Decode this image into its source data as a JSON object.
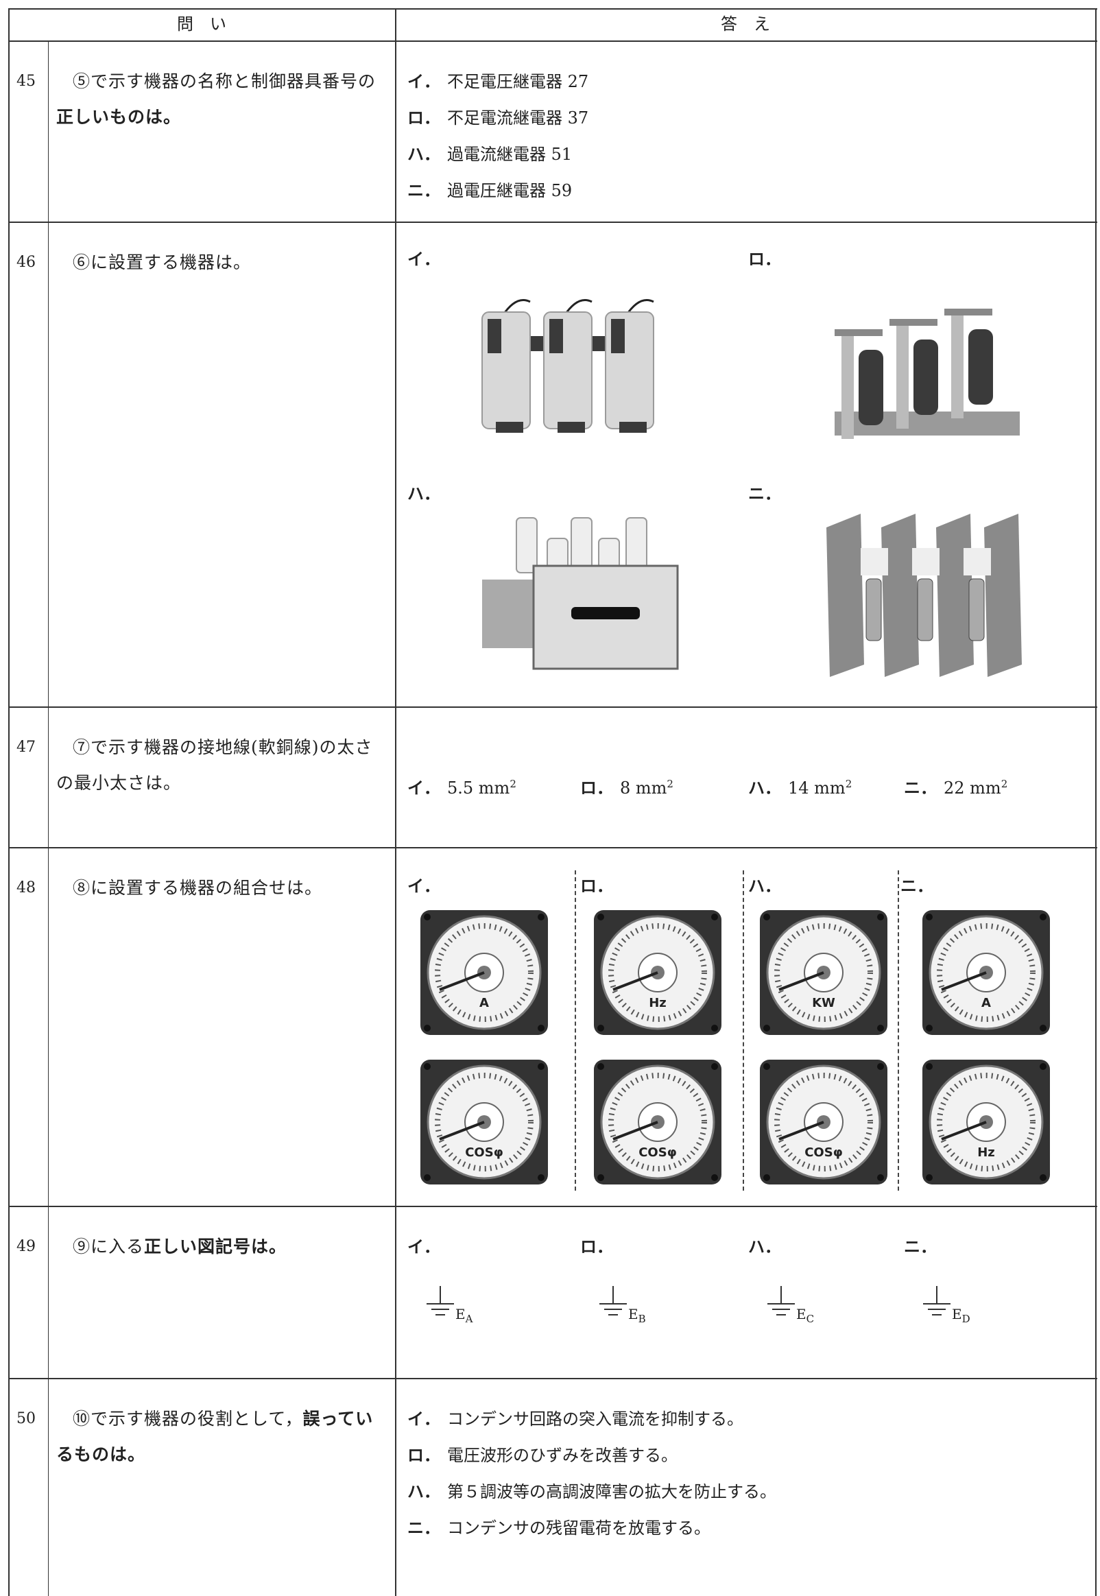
{
  "header": {
    "question": "問　い",
    "answer": "答　え"
  },
  "questions": [
    {
      "number": 45,
      "text": "⑤で示す機器の名称と制御器具番号の",
      "emphasis": "正しいものは。",
      "options": [
        {
          "label": "イ．",
          "text": "不足電圧継電器 27"
        },
        {
          "label": "ロ．",
          "text": "不足電流継電器 37"
        },
        {
          "label": "ハ．",
          "text": "過電流継電器 51"
        },
        {
          "label": "ニ．",
          "text": "過電圧継電器 59"
        }
      ]
    },
    {
      "number": 46,
      "text": "⑥に設置する機器は。",
      "options": [
        {
          "label": "イ．"
        },
        {
          "label": "ロ．"
        },
        {
          "label": "ハ．"
        },
        {
          "label": "ニ．"
        }
      ]
    },
    {
      "number": 47,
      "text": "⑦で示す機器の接地線(軟銅線)の太さの最小太さは。",
      "options": [
        {
          "label": "イ．",
          "text": "5.5 mm",
          "sup": "2"
        },
        {
          "label": "ロ．",
          "text": "8 mm",
          "sup": "2"
        },
        {
          "label": "ハ．",
          "text": "14 mm",
          "sup": "2"
        },
        {
          "label": "ニ．",
          "text": "22 mm",
          "sup": "2"
        }
      ]
    },
    {
      "number": 48,
      "text": "⑧に設置する機器の組合せは。",
      "options": [
        {
          "label": "イ．",
          "meters": [
            "A",
            "COSφ"
          ]
        },
        {
          "label": "ロ．",
          "meters": [
            "Hz",
            "COSφ"
          ]
        },
        {
          "label": "ハ．",
          "meters": [
            "KW",
            "COSφ"
          ]
        },
        {
          "label": "ニ．",
          "meters": [
            "A",
            "Hz"
          ]
        }
      ]
    },
    {
      "number": 49,
      "text": "⑨に入る",
      "emphasis": "正しい図記号は。",
      "options": [
        {
          "label": "イ．",
          "symbol": "E",
          "sub": "A"
        },
        {
          "label": "ロ．",
          "symbol": "E",
          "sub": "B"
        },
        {
          "label": "ハ．",
          "symbol": "E",
          "sub": "C"
        },
        {
          "label": "ニ．",
          "symbol": "E",
          "sub": "D"
        }
      ]
    },
    {
      "number": 50,
      "text": "⑩で示す機器の役割として，",
      "emphasis": "誤っているものは。",
      "options": [
        {
          "label": "イ．",
          "text": "コンデンサ回路の突入電流を抑制する。"
        },
        {
          "label": "ロ．",
          "text": "電圧波形のひずみを改善する。"
        },
        {
          "label": "ハ．",
          "text": "第５調波等の高調波障害の拡大を防止する。"
        },
        {
          "label": "ニ．",
          "text": "コンデンサの残留電荷を放電する。"
        }
      ]
    }
  ]
}
